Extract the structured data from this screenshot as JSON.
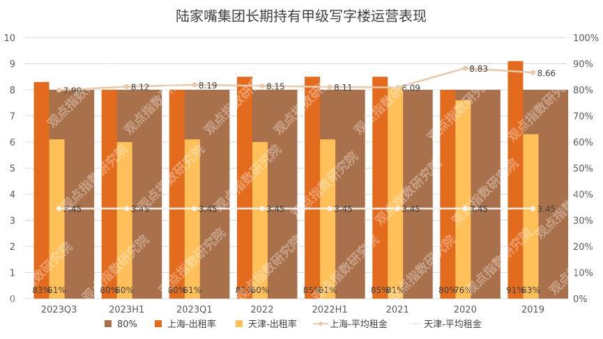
{
  "chart_data": {
    "type": "bar",
    "title": "陆家嘴集团长期持有甲级写字楼运营表现",
    "categories": [
      "2023Q3",
      "2023H1",
      "2023Q1",
      "2022",
      "2022H1",
      "2021",
      "2020",
      "2019"
    ],
    "y_left": {
      "min": 0,
      "max": 10,
      "step": 1
    },
    "y_right": {
      "min": 0,
      "max": 100,
      "step": 10,
      "suffix": "%"
    },
    "grid": true,
    "legend_position": "bottom",
    "series": [
      {
        "name": "80%",
        "type": "bar",
        "axis": "right",
        "color": "#A9714B",
        "values": [
          80,
          80,
          80,
          80,
          80,
          80,
          80,
          80
        ]
      },
      {
        "name": "上海-出租率",
        "type": "bar",
        "axis": "right",
        "color": "#E26B1E",
        "values": [
          83,
          80,
          80,
          85,
          85,
          85,
          80,
          91
        ],
        "labels": [
          "83%",
          "80%",
          "80%",
          "85%",
          "85%",
          "85%",
          "80%",
          "91%"
        ]
      },
      {
        "name": "天津-出租率",
        "type": "bar",
        "axis": "right",
        "color": "#FFC05A",
        "values": [
          61,
          60,
          61,
          60,
          61,
          81,
          76,
          63
        ],
        "labels": [
          "61%",
          "60%",
          "61%",
          "60%",
          "61%",
          "81%",
          "76%",
          "63%"
        ]
      },
      {
        "name": "上海-平均租金",
        "type": "line",
        "axis": "left",
        "color": "#E8C8A8",
        "values": [
          7.99,
          8.12,
          8.19,
          8.15,
          8.11,
          8.09,
          8.83,
          8.66
        ],
        "labels": [
          "7.99",
          "8.12",
          "8.19",
          "8.15",
          "8.11",
          "8.09",
          "8.83",
          "8.66"
        ]
      },
      {
        "name": "天津-平均租金",
        "type": "line",
        "axis": "left",
        "color": "#F2F2F2",
        "values": [
          3.45,
          3.45,
          3.45,
          3.45,
          3.45,
          3.45,
          3.45,
          3.45
        ],
        "labels": [
          "3.45",
          "3.45",
          "3.45",
          "3.45",
          "3.45",
          "3.45",
          "3.45",
          "3.45"
        ]
      }
    ],
    "watermark": "观点指数研究院"
  }
}
